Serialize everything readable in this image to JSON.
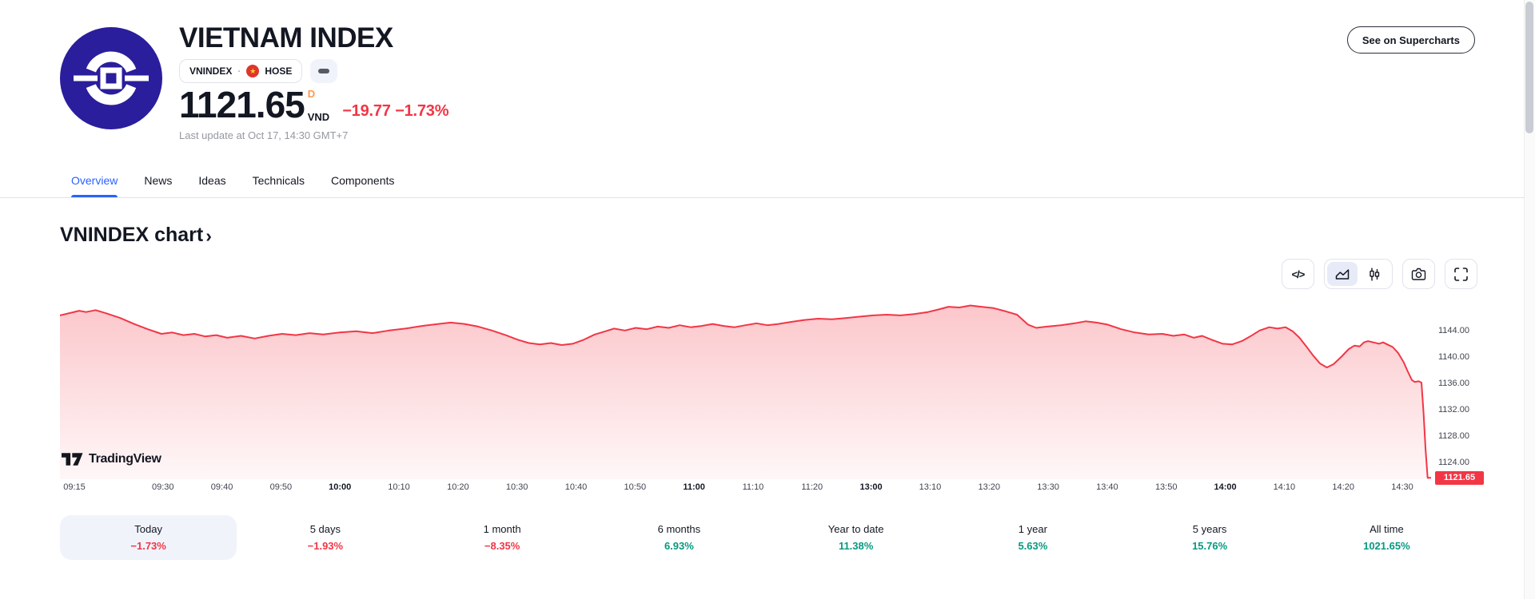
{
  "colors": {
    "negative_red": "#F23645",
    "positive_teal": "#089981",
    "accent_blue": "#2962FF",
    "interval_orange": "#FF9850",
    "logo_navy": "#2A1E9C",
    "border": "#E0E3EB",
    "pill_bg": "#F0F3FA",
    "text_primary": "#131722",
    "text_secondary": "#9598A1"
  },
  "header": {
    "title": "VIETNAM INDEX",
    "symbol": "VNINDEX",
    "separator": "·",
    "exchange": "HOSE",
    "flag_star": "★",
    "price": "1121.65",
    "interval": "D",
    "currency": "VND",
    "change": "−19.77 −1.73%",
    "last_update": "Last update at Oct 17, 14:30 GMT+7",
    "supercharts_label": "See on Supercharts"
  },
  "tabs": [
    {
      "label": "Overview",
      "active": true
    },
    {
      "label": "News",
      "active": false
    },
    {
      "label": "Ideas",
      "active": false
    },
    {
      "label": "Technicals",
      "active": false
    },
    {
      "label": "Components",
      "active": false
    }
  ],
  "section": {
    "heading": "VNINDEX chart",
    "chevron": "›"
  },
  "toolbar": {
    "code_glyph": "</>"
  },
  "watermark": {
    "text": "TradingView"
  },
  "chart_data": {
    "type": "area",
    "symbol": "VNINDEX",
    "line_color": "#F23645",
    "fill_top": "rgba(242,54,69,0.28)",
    "fill_bottom": "rgba(242,54,69,0.04)",
    "last_price": "1121.65",
    "y_range": [
      1121.45,
      1148.1
    ],
    "y_ticks": [
      "1144.00",
      "1140.00",
      "1136.00",
      "1132.00",
      "1128.00",
      "1124.00"
    ],
    "x_labels": [
      "09:15",
      "09:30",
      "09:40",
      "09:50",
      "10:00",
      "10:10",
      "10:20",
      "10:30",
      "10:40",
      "10:50",
      "11:00",
      "11:10",
      "11:20",
      "13:00",
      "13:10",
      "13:20",
      "13:30",
      "13:40",
      "13:50",
      "14:00",
      "14:10",
      "14:20",
      "14:30"
    ],
    "bold_x_labels": [
      "10:00",
      "11:00",
      "13:00",
      "14:00"
    ],
    "points": [
      [
        0.0,
        1146.3
      ],
      [
        0.008,
        1146.7
      ],
      [
        0.014,
        1147.0
      ],
      [
        0.019,
        1146.8
      ],
      [
        0.026,
        1147.1
      ],
      [
        0.034,
        1146.6
      ],
      [
        0.044,
        1145.9
      ],
      [
        0.054,
        1145.0
      ],
      [
        0.064,
        1144.2
      ],
      [
        0.074,
        1143.5
      ],
      [
        0.082,
        1143.7
      ],
      [
        0.09,
        1143.3
      ],
      [
        0.098,
        1143.5
      ],
      [
        0.106,
        1143.1
      ],
      [
        0.114,
        1143.3
      ],
      [
        0.122,
        1142.9
      ],
      [
        0.132,
        1143.2
      ],
      [
        0.142,
        1142.8
      ],
      [
        0.152,
        1143.2
      ],
      [
        0.162,
        1143.5
      ],
      [
        0.172,
        1143.3
      ],
      [
        0.182,
        1143.6
      ],
      [
        0.192,
        1143.4
      ],
      [
        0.204,
        1143.7
      ],
      [
        0.216,
        1143.9
      ],
      [
        0.228,
        1143.6
      ],
      [
        0.24,
        1144.0
      ],
      [
        0.252,
        1144.3
      ],
      [
        0.264,
        1144.7
      ],
      [
        0.276,
        1145.0
      ],
      [
        0.285,
        1145.2
      ],
      [
        0.295,
        1145.0
      ],
      [
        0.305,
        1144.6
      ],
      [
        0.315,
        1144.0
      ],
      [
        0.325,
        1143.3
      ],
      [
        0.334,
        1142.6
      ],
      [
        0.342,
        1142.1
      ],
      [
        0.35,
        1141.9
      ],
      [
        0.358,
        1142.1
      ],
      [
        0.366,
        1141.8
      ],
      [
        0.374,
        1142.0
      ],
      [
        0.382,
        1142.6
      ],
      [
        0.39,
        1143.4
      ],
      [
        0.398,
        1143.9
      ],
      [
        0.404,
        1144.3
      ],
      [
        0.412,
        1144.0
      ],
      [
        0.42,
        1144.4
      ],
      [
        0.428,
        1144.2
      ],
      [
        0.436,
        1144.6
      ],
      [
        0.444,
        1144.4
      ],
      [
        0.452,
        1144.8
      ],
      [
        0.46,
        1144.5
      ],
      [
        0.468,
        1144.7
      ],
      [
        0.476,
        1145.0
      ],
      [
        0.484,
        1144.7
      ],
      [
        0.492,
        1144.5
      ],
      [
        0.5,
        1144.8
      ],
      [
        0.508,
        1145.1
      ],
      [
        0.516,
        1144.8
      ],
      [
        0.524,
        1145.0
      ],
      [
        0.533,
        1145.3
      ],
      [
        0.543,
        1145.6
      ],
      [
        0.553,
        1145.8
      ],
      [
        0.563,
        1145.7
      ],
      [
        0.573,
        1145.9
      ],
      [
        0.583,
        1146.1
      ],
      [
        0.593,
        1146.3
      ],
      [
        0.603,
        1146.4
      ],
      [
        0.613,
        1146.3
      ],
      [
        0.623,
        1146.5
      ],
      [
        0.633,
        1146.8
      ],
      [
        0.641,
        1147.2
      ],
      [
        0.648,
        1147.6
      ],
      [
        0.656,
        1147.5
      ],
      [
        0.664,
        1147.8
      ],
      [
        0.672,
        1147.6
      ],
      [
        0.681,
        1147.4
      ],
      [
        0.69,
        1146.9
      ],
      [
        0.698,
        1146.4
      ],
      [
        0.706,
        1144.9
      ],
      [
        0.712,
        1144.4
      ],
      [
        0.72,
        1144.6
      ],
      [
        0.73,
        1144.8
      ],
      [
        0.74,
        1145.1
      ],
      [
        0.748,
        1145.4
      ],
      [
        0.756,
        1145.2
      ],
      [
        0.764,
        1144.9
      ],
      [
        0.774,
        1144.2
      ],
      [
        0.784,
        1143.7
      ],
      [
        0.794,
        1143.4
      ],
      [
        0.804,
        1143.5
      ],
      [
        0.812,
        1143.2
      ],
      [
        0.82,
        1143.4
      ],
      [
        0.827,
        1142.9
      ],
      [
        0.833,
        1143.2
      ],
      [
        0.84,
        1142.6
      ],
      [
        0.848,
        1142.0
      ],
      [
        0.855,
        1141.9
      ],
      [
        0.862,
        1142.4
      ],
      [
        0.868,
        1143.1
      ],
      [
        0.875,
        1144.0
      ],
      [
        0.882,
        1144.5
      ],
      [
        0.888,
        1144.3
      ],
      [
        0.894,
        1144.5
      ],
      [
        0.899,
        1143.9
      ],
      [
        0.904,
        1142.9
      ],
      [
        0.909,
        1141.6
      ],
      [
        0.914,
        1140.2
      ],
      [
        0.919,
        1139.0
      ],
      [
        0.924,
        1138.4
      ],
      [
        0.929,
        1138.9
      ],
      [
        0.935,
        1140.1
      ],
      [
        0.94,
        1141.2
      ],
      [
        0.944,
        1141.7
      ],
      [
        0.948,
        1141.6
      ],
      [
        0.951,
        1142.2
      ],
      [
        0.954,
        1142.4
      ],
      [
        0.958,
        1142.2
      ],
      [
        0.962,
        1142.0
      ],
      [
        0.965,
        1142.2
      ],
      [
        0.968,
        1141.9
      ],
      [
        0.972,
        1141.5
      ],
      [
        0.976,
        1140.6
      ],
      [
        0.98,
        1139.2
      ],
      [
        0.983,
        1137.8
      ],
      [
        0.986,
        1136.5
      ],
      [
        0.988,
        1136.2
      ],
      [
        0.991,
        1136.3
      ],
      [
        0.993,
        1136.1
      ],
      [
        0.9945,
        1131.5
      ],
      [
        0.996,
        1126.0
      ],
      [
        0.9975,
        1121.65
      ],
      [
        1.0,
        1121.65
      ]
    ]
  },
  "periods": [
    {
      "label": "Today",
      "value": "−1.73%",
      "dir": "neg",
      "selected": true
    },
    {
      "label": "5 days",
      "value": "−1.93%",
      "dir": "neg",
      "selected": false
    },
    {
      "label": "1 month",
      "value": "−8.35%",
      "dir": "neg",
      "selected": false
    },
    {
      "label": "6 months",
      "value": "6.93%",
      "dir": "pos",
      "selected": false
    },
    {
      "label": "Year to date",
      "value": "11.38%",
      "dir": "pos",
      "selected": false
    },
    {
      "label": "1 year",
      "value": "5.63%",
      "dir": "pos",
      "selected": false
    },
    {
      "label": "5 years",
      "value": "15.76%",
      "dir": "pos",
      "selected": false
    },
    {
      "label": "All time",
      "value": "1021.65%",
      "dir": "pos",
      "selected": false
    }
  ]
}
